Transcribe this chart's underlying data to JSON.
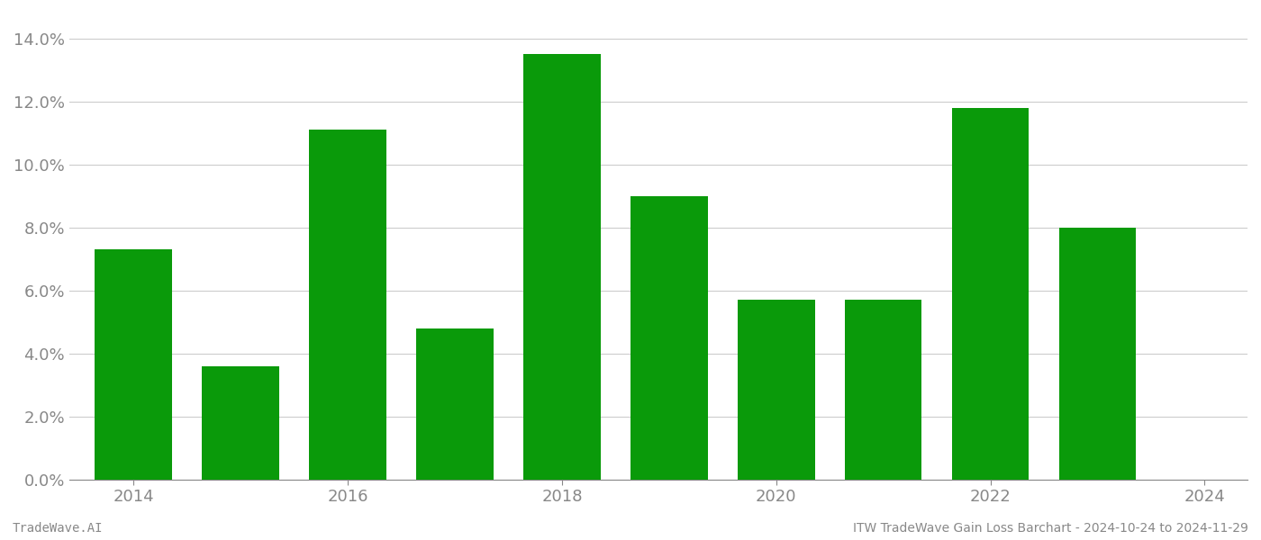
{
  "years": [
    2014,
    2015,
    2016,
    2017,
    2018,
    2019,
    2020,
    2021,
    2022,
    2023
  ],
  "values": [
    0.073,
    0.036,
    0.111,
    0.048,
    0.135,
    0.09,
    0.057,
    0.057,
    0.118,
    0.08
  ],
  "bar_color": "#0a9a0a",
  "background_color": "#ffffff",
  "grid_color": "#cccccc",
  "ylim": [
    0,
    0.148
  ],
  "yticks": [
    0.0,
    0.02,
    0.04,
    0.06,
    0.08,
    0.1,
    0.12,
    0.14
  ],
  "xtick_labels": [
    "2014",
    "2016",
    "2018",
    "2020",
    "2022",
    "2024"
  ],
  "xtick_positions": [
    2014,
    2016,
    2018,
    2020,
    2022,
    2024
  ],
  "xlim": [
    2013.4,
    2024.4
  ],
  "footer_left": "TradeWave.AI",
  "footer_right": "ITW TradeWave Gain Loss Barchart - 2024-10-24 to 2024-11-29",
  "tick_fontsize": 13,
  "footer_fontsize": 10,
  "tick_color": "#888888",
  "spine_color": "#888888",
  "bar_width": 0.72
}
